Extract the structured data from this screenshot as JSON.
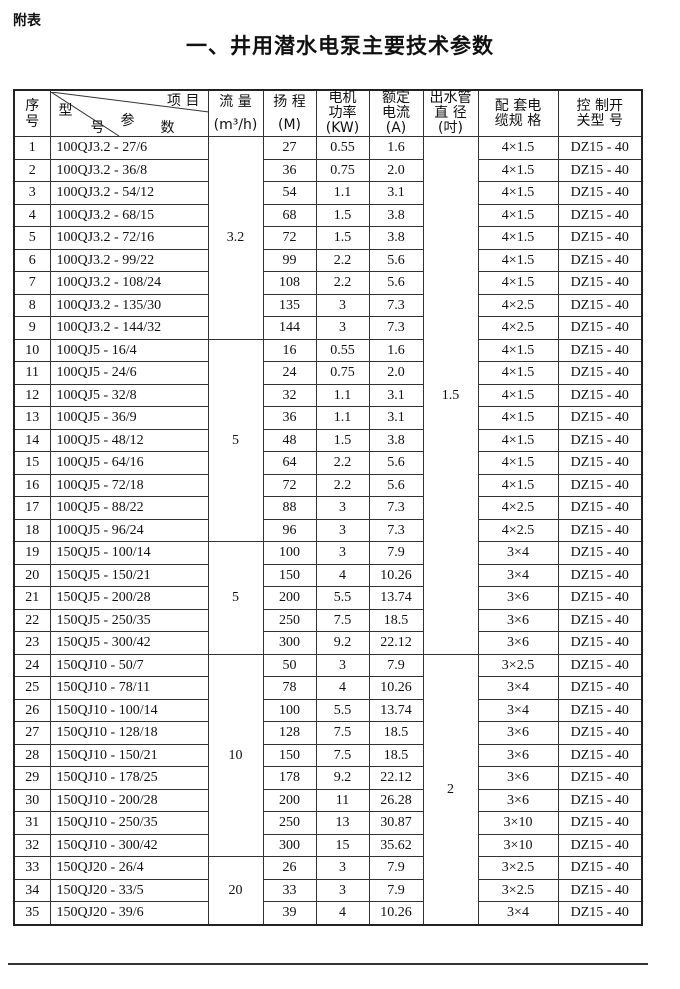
{
  "appendix_label": "附表",
  "title": "一、井用潜水电泵主要技术参数",
  "headers": {
    "index": "序号",
    "diag_item": "项  目",
    "diag_type": "型",
    "diag_param": "参",
    "diag_num": "号",
    "diag_shu": "数",
    "flow": "流 量",
    "flow_unit": "(m³/h)",
    "head": "扬 程",
    "head_unit": "(M)",
    "power": "电机功率",
    "power_unit": "(KW)",
    "current": "额定电流",
    "current_unit": "(A)",
    "pipe": "出水管直 径",
    "pipe_unit": "(吋)",
    "cable": "配  套电  缆规  格",
    "switch": "控  制开  关型  号"
  },
  "flow_groups": [
    {
      "value": "3.2",
      "rows": 9
    },
    {
      "value": "5",
      "rows": 9
    },
    {
      "value": "5",
      "rows": 5
    },
    {
      "value": "10",
      "rows": 9
    },
    {
      "value": "20",
      "rows": 3
    }
  ],
  "pipe_groups": [
    {
      "value": "1.5",
      "rows": 23
    },
    {
      "value": "2",
      "rows": 12
    }
  ],
  "rows": [
    [
      "1",
      "100QJ3.2 - 27/6",
      "27",
      "0.55",
      "1.6",
      "4×1.5",
      "DZ15 - 40"
    ],
    [
      "2",
      "100QJ3.2 - 36/8",
      "36",
      "0.75",
      "2.0",
      "4×1.5",
      "DZ15 - 40"
    ],
    [
      "3",
      "100QJ3.2 - 54/12",
      "54",
      "1.1",
      "3.1",
      "4×1.5",
      "DZ15 - 40"
    ],
    [
      "4",
      "100QJ3.2 - 68/15",
      "68",
      "1.5",
      "3.8",
      "4×1.5",
      "DZ15 - 40"
    ],
    [
      "5",
      "100QJ3.2 - 72/16",
      "72",
      "1.5",
      "3.8",
      "4×1.5",
      "DZ15 - 40"
    ],
    [
      "6",
      "100QJ3.2 - 99/22",
      "99",
      "2.2",
      "5.6",
      "4×1.5",
      "DZ15 - 40"
    ],
    [
      "7",
      "100QJ3.2 - 108/24",
      "108",
      "2.2",
      "5.6",
      "4×1.5",
      "DZ15 - 40"
    ],
    [
      "8",
      "100QJ3.2 - 135/30",
      "135",
      "3",
      "7.3",
      "4×2.5",
      "DZ15 - 40"
    ],
    [
      "9",
      "100QJ3.2 - 144/32",
      "144",
      "3",
      "7.3",
      "4×2.5",
      "DZ15 - 40"
    ],
    [
      "10",
      "100QJ5 - 16/4",
      "16",
      "0.55",
      "1.6",
      "4×1.5",
      "DZ15 - 40"
    ],
    [
      "11",
      "100QJ5 - 24/6",
      "24",
      "0.75",
      "2.0",
      "4×1.5",
      "DZ15 - 40"
    ],
    [
      "12",
      "100QJ5 - 32/8",
      "32",
      "1.1",
      "3.1",
      "4×1.5",
      "DZ15 - 40"
    ],
    [
      "13",
      "100QJ5 - 36/9",
      "36",
      "1.1",
      "3.1",
      "4×1.5",
      "DZ15 - 40"
    ],
    [
      "14",
      "100QJ5 - 48/12",
      "48",
      "1.5",
      "3.8",
      "4×1.5",
      "DZ15 - 40"
    ],
    [
      "15",
      "100QJ5 - 64/16",
      "64",
      "2.2",
      "5.6",
      "4×1.5",
      "DZ15 - 40"
    ],
    [
      "16",
      "100QJ5 - 72/18",
      "72",
      "2.2",
      "5.6",
      "4×1.5",
      "DZ15 - 40"
    ],
    [
      "17",
      "100QJ5 - 88/22",
      "88",
      "3",
      "7.3",
      "4×2.5",
      "DZ15 - 40"
    ],
    [
      "18",
      "100QJ5 - 96/24",
      "96",
      "3",
      "7.3",
      "4×2.5",
      "DZ15 - 40"
    ],
    [
      "19",
      "150QJ5 - 100/14",
      "100",
      "3",
      "7.9",
      "3×4",
      "DZ15 - 40"
    ],
    [
      "20",
      "150QJ5 - 150/21",
      "150",
      "4",
      "10.26",
      "3×4",
      "DZ15 - 40"
    ],
    [
      "21",
      "150QJ5 - 200/28",
      "200",
      "5.5",
      "13.74",
      "3×6",
      "DZ15 - 40"
    ],
    [
      "22",
      "150QJ5 - 250/35",
      "250",
      "7.5",
      "18.5",
      "3×6",
      "DZ15 - 40"
    ],
    [
      "23",
      "150QJ5 - 300/42",
      "300",
      "9.2",
      "22.12",
      "3×6",
      "DZ15 - 40"
    ],
    [
      "24",
      "150QJ10 - 50/7",
      "50",
      "3",
      "7.9",
      "3×2.5",
      "DZ15 - 40"
    ],
    [
      "25",
      "150QJ10 - 78/11",
      "78",
      "4",
      "10.26",
      "3×4",
      "DZ15 - 40"
    ],
    [
      "26",
      "150QJ10 - 100/14",
      "100",
      "5.5",
      "13.74",
      "3×4",
      "DZ15 - 40"
    ],
    [
      "27",
      "150QJ10 - 128/18",
      "128",
      "7.5",
      "18.5",
      "3×6",
      "DZ15 - 40"
    ],
    [
      "28",
      "150QJ10 - 150/21",
      "150",
      "7.5",
      "18.5",
      "3×6",
      "DZ15 - 40"
    ],
    [
      "29",
      "150QJ10 - 178/25",
      "178",
      "9.2",
      "22.12",
      "3×6",
      "DZ15 - 40"
    ],
    [
      "30",
      "150QJ10 - 200/28",
      "200",
      "11",
      "26.28",
      "3×6",
      "DZ15 - 40"
    ],
    [
      "31",
      "150QJ10 - 250/35",
      "250",
      "13",
      "30.87",
      "3×10",
      "DZ15 - 40"
    ],
    [
      "32",
      "150QJ10 - 300/42",
      "300",
      "15",
      "35.62",
      "3×10",
      "DZ15 - 40"
    ],
    [
      "33",
      "150QJ20 - 26/4",
      "26",
      "3",
      "7.9",
      "3×2.5",
      "DZ15 - 40"
    ],
    [
      "34",
      "150QJ20 - 33/5",
      "33",
      "3",
      "7.9",
      "3×2.5",
      "DZ15 - 40"
    ],
    [
      "35",
      "150QJ20 - 39/6",
      "39",
      "4",
      "10.26",
      "3×4",
      "DZ15 - 40"
    ]
  ]
}
